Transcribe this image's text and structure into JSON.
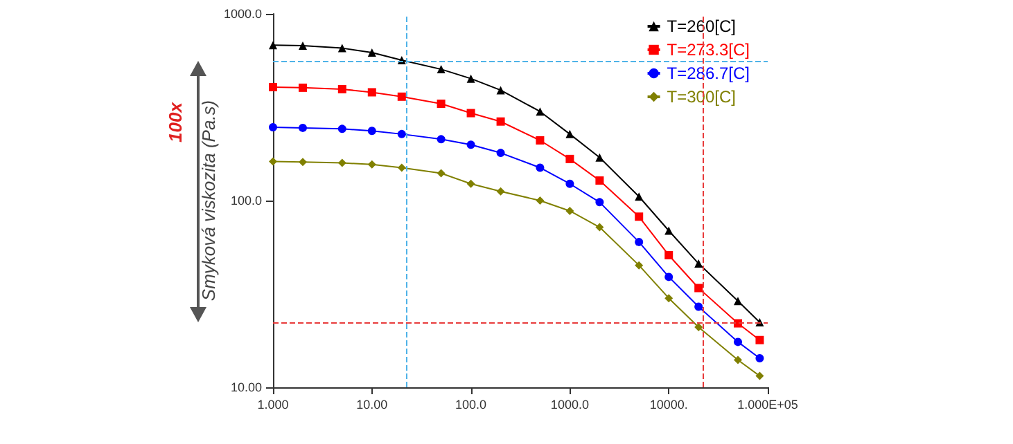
{
  "chart_data": {
    "type": "line",
    "ylabel": "Smyková viskozita (Pa.s)",
    "annotations": [
      "100x"
    ],
    "log": "xy",
    "grid": false,
    "legend": "top right",
    "line_style": "solid",
    "xlim": [
      1,
      100000
    ],
    "xticks": [
      {
        "value": 1,
        "label": "1.000"
      },
      {
        "value": 10,
        "label": "10.00"
      },
      {
        "value": 100,
        "label": "100.0"
      },
      {
        "value": 1000,
        "label": "1000.0"
      },
      {
        "value": 10000,
        "label": "10000."
      },
      {
        "value": 100000,
        "label": "1.000E+05"
      }
    ],
    "ylim": [
      10,
      1000
    ],
    "yticks": [
      {
        "value": 10,
        "label": "10.00"
      },
      {
        "value": 100,
        "label": "100.0"
      },
      {
        "value": 1000,
        "label": "1000.0"
      }
    ],
    "x": [
      1,
      2,
      5,
      10,
      20,
      50,
      100,
      200,
      500,
      1000,
      2000,
      5000,
      10000,
      20000,
      50000,
      83000
    ],
    "series": [
      {
        "name": "T=260[C]",
        "color": "#000000",
        "marker": "triangle",
        "values": [
          680,
          675,
          655,
          620,
          565,
          505,
          450,
          390,
          300,
          227,
          170,
          105,
          69,
          46,
          29,
          22.3
        ]
      },
      {
        "name": "T=273.3[C]",
        "color": "#ff0000",
        "marker": "square",
        "values": [
          405,
          402,
          395,
          380,
          360,
          330,
          294,
          265,
          210,
          167,
          128,
          82,
          51,
          34,
          22,
          17.9
        ]
      },
      {
        "name": "T=286.7[C]",
        "color": "#0000ff",
        "marker": "circle",
        "values": [
          247,
          245,
          242,
          236,
          227,
          213,
          199,
          180,
          150,
          123,
          98,
          60,
          39,
          27,
          17.5,
          14.3
        ]
      },
      {
        "name": "T=300[C]",
        "color": "#808000",
        "marker": "diamond",
        "values": [
          162,
          161,
          159,
          156,
          150,
          140,
          123,
          112,
          100,
          88,
          72,
          45,
          30,
          21,
          14,
          11.5
        ]
      }
    ],
    "ref_lines": [
      {
        "axis": "x",
        "value": 22,
        "color": "#4fb3e8",
        "line_style": "dashed"
      },
      {
        "axis": "y",
        "value": 560,
        "color": "#4fb3e8",
        "line_style": "dashed"
      },
      {
        "axis": "x",
        "value": 22000,
        "color": "#e83b3b",
        "line_style": "dashed"
      },
      {
        "axis": "y",
        "value": 22.3,
        "color": "#e83b3b",
        "line_style": "dashed"
      }
    ]
  }
}
